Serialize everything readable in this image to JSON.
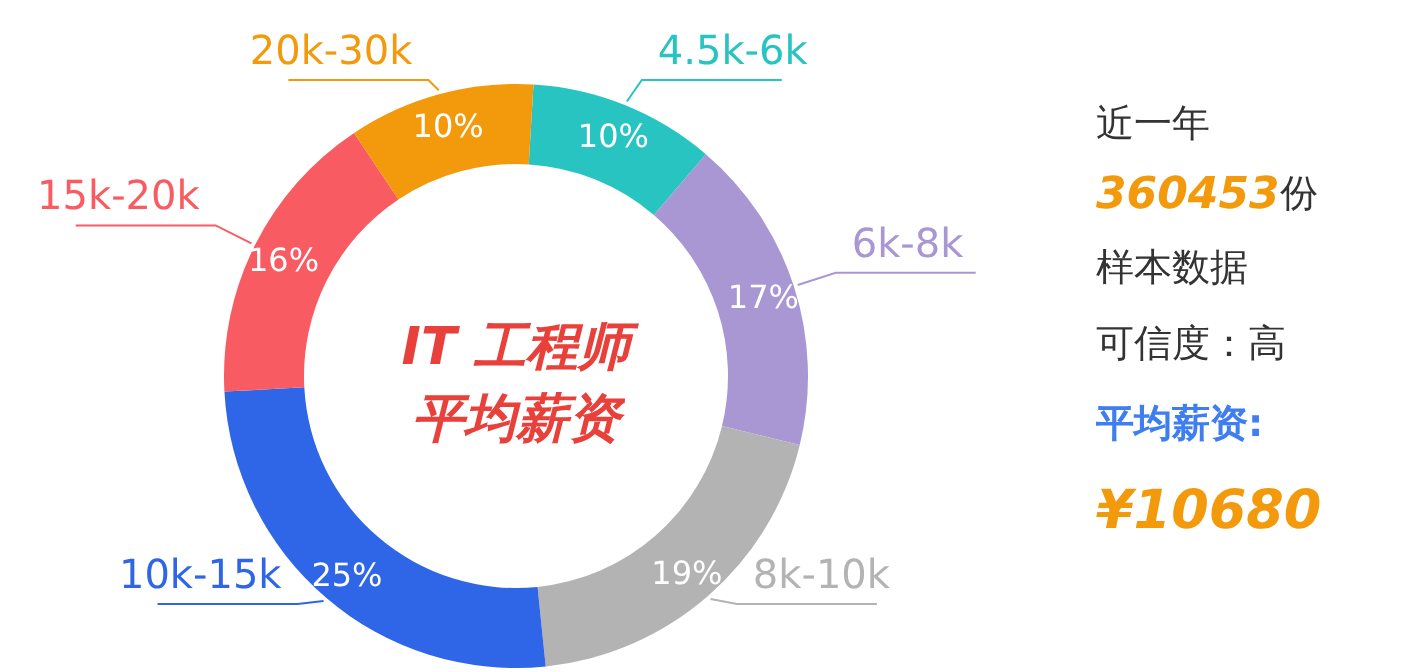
{
  "chart_data": {
    "type": "donut",
    "title": "IT 工程师",
    "subtitle": "平均薪资",
    "categories": [
      "4.5k-6k",
      "6k-8k",
      "8k-10k",
      "10k-15k",
      "15k-20k",
      "20k-30k"
    ],
    "values": [
      10,
      17,
      19,
      25,
      16,
      10
    ],
    "value_labels": [
      "10%",
      "17%",
      "19%",
      "25%",
      "16%",
      "10%"
    ],
    "colors": [
      "#28c4c1",
      "#a897d3",
      "#b3b3b3",
      "#2f66e8",
      "#f85b62",
      "#f29a0c"
    ],
    "legend": false,
    "annotations": [
      "近一年",
      "360453",
      "份",
      "样本数据",
      "可信度：高",
      "平均薪资:",
      "¥10680"
    ]
  }
}
